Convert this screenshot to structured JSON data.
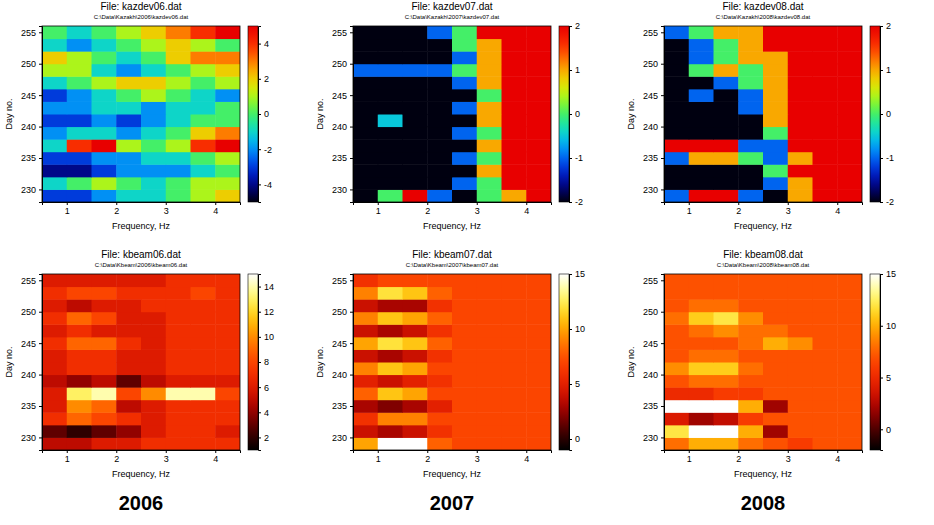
{
  "column_labels": [
    "2006",
    "2007",
    "2008"
  ],
  "chart_data": [
    {
      "type": "heatmap",
      "title": "File: kazdev06.dat",
      "subtitle": "C:\\Data\\Kazakh\\2006\\kazdev06.dat",
      "x_label": "Frequency, Hz",
      "y_label": "Day no.",
      "color": "jet",
      "xlim": [
        0.5,
        4.5
      ],
      "ylim": [
        228,
        256
      ],
      "xticks": [
        1,
        2,
        3,
        4
      ],
      "yticks": [
        230,
        235,
        240,
        245,
        250,
        255
      ],
      "x_bins": [
        0.5,
        1,
        1.5,
        2,
        2.5,
        3,
        3.5,
        4,
        4.5
      ],
      "y_bins": [
        228,
        230,
        232,
        234,
        236,
        238,
        240,
        242,
        244,
        246,
        248,
        250,
        252,
        254,
        256
      ],
      "values": [
        [
          -3,
          -3,
          -2,
          -1,
          -1,
          0,
          1,
          2
        ],
        [
          -1,
          0,
          1,
          0,
          -1,
          0,
          1,
          1
        ],
        [
          -4,
          -4,
          -3,
          -2,
          -2,
          -2,
          -1,
          0
        ],
        [
          -3,
          -3,
          -2,
          -2,
          -1,
          -1,
          0,
          1
        ],
        [
          -1,
          4,
          5,
          1,
          0,
          1,
          4,
          5
        ],
        [
          -2,
          -1,
          -1,
          -2,
          -1,
          0,
          2,
          3
        ],
        [
          -3,
          -3,
          -2,
          -3,
          -2,
          -1,
          0,
          0
        ],
        [
          -2,
          -2,
          -1,
          -1,
          -2,
          -1,
          -1,
          0
        ],
        [
          -3,
          -2,
          -1,
          0,
          1,
          0,
          -1,
          -2
        ],
        [
          -1,
          0,
          1,
          2,
          2,
          1,
          0,
          1
        ],
        [
          1,
          1,
          -1,
          -2,
          -1,
          0,
          1,
          2
        ],
        [
          2,
          1,
          0,
          -1,
          0,
          2,
          3,
          3
        ],
        [
          -1,
          -2,
          -1,
          0,
          1,
          2,
          1,
          0
        ],
        [
          0,
          -1,
          0,
          1,
          2,
          3,
          4,
          5
        ]
      ],
      "colorbar_range": [
        -5,
        5
      ],
      "colorbar_ticks": [
        -4,
        -2,
        0,
        2,
        4
      ]
    },
    {
      "type": "heatmap",
      "title": "File: kazdev07.dat",
      "subtitle": "C:\\Data\\Kazakh\\2007\\kazdev07.dat",
      "x_label": "Frequency, Hz",
      "y_label": "Day no.",
      "color": "jet",
      "xlim": [
        0.5,
        4.5
      ],
      "ylim": [
        228,
        256
      ],
      "xticks": [
        1,
        2,
        3,
        4
      ],
      "yticks": [
        230,
        235,
        240,
        245,
        250,
        255
      ],
      "x_bins": [
        0.5,
        1,
        1.5,
        2,
        2.5,
        3,
        3.5,
        4,
        4.5
      ],
      "y_bins": [
        228,
        230,
        232,
        234,
        236,
        238,
        240,
        242,
        244,
        246,
        248,
        250,
        252,
        254,
        256
      ],
      "values": [
        [
          -2,
          0,
          2,
          -1,
          -2,
          0,
          1,
          2
        ],
        [
          -2,
          -2,
          -2,
          -2,
          -1,
          0,
          2,
          2
        ],
        [
          -2,
          -2,
          -2,
          -2,
          -2,
          1,
          2,
          2
        ],
        [
          -2,
          -2,
          -2,
          -2,
          -1,
          0,
          2,
          2
        ],
        [
          -2,
          -2,
          -2,
          -2,
          -2,
          1,
          2,
          2
        ],
        [
          -2,
          -2,
          -2,
          -2,
          -1,
          0,
          2,
          2
        ],
        [
          -2,
          -0.5,
          -2,
          -2,
          -2,
          1,
          2,
          2
        ],
        [
          -2,
          -2,
          -2,
          -2,
          -1,
          1,
          2,
          2
        ],
        [
          -2,
          -2,
          -2,
          -2,
          -2,
          0,
          2,
          2
        ],
        [
          -2,
          -2,
          -2,
          -2,
          -1,
          1,
          2,
          2
        ],
        [
          -1,
          -1,
          -1,
          -1,
          0,
          1,
          2,
          2
        ],
        [
          -2,
          -2,
          -2,
          -2,
          -1,
          1,
          2,
          2
        ],
        [
          -2,
          -2,
          -2,
          -2,
          0,
          1,
          2,
          2
        ],
        [
          -2,
          -2,
          -2,
          -1,
          0,
          2,
          2,
          2
        ]
      ],
      "colorbar_range": [
        -2,
        2
      ],
      "colorbar_ticks": [
        -2,
        -1,
        0,
        1,
        2
      ]
    },
    {
      "type": "heatmap",
      "title": "File: kazdev08.dat",
      "subtitle": "C:\\Data\\Kazakh\\2008\\kazdev08.dat",
      "x_label": "Frequency, Hz",
      "y_label": "Day no.",
      "color": "jet",
      "xlim": [
        0.5,
        4.5
      ],
      "ylim": [
        228,
        256
      ],
      "xticks": [
        1,
        2,
        3,
        4
      ],
      "yticks": [
        230,
        235,
        240,
        245,
        250,
        255
      ],
      "x_bins": [
        0.5,
        1,
        1.5,
        2,
        2.5,
        3,
        3.5,
        4,
        4.5
      ],
      "y_bins": [
        228,
        230,
        232,
        234,
        236,
        238,
        240,
        242,
        244,
        246,
        248,
        250,
        252,
        254,
        256
      ],
      "values": [
        [
          -1,
          2,
          2,
          -1,
          -2,
          1,
          2,
          2
        ],
        [
          -2,
          -2,
          -2,
          -2,
          -1,
          1,
          2,
          2
        ],
        [
          -2,
          -2,
          -2,
          -2,
          0,
          2,
          2,
          2
        ],
        [
          -1,
          1,
          1,
          0,
          -1,
          1,
          2,
          2
        ],
        [
          2,
          2,
          2,
          -1,
          -1,
          2,
          2,
          2
        ],
        [
          -2,
          -2,
          -2,
          -2,
          0,
          2,
          2,
          2
        ],
        [
          -2,
          -2,
          -2,
          -2,
          1,
          2,
          2,
          2
        ],
        [
          -2,
          -2,
          -2,
          -1,
          1,
          2,
          2,
          2
        ],
        [
          -2,
          -1,
          -2,
          -1,
          1,
          2,
          2,
          2
        ],
        [
          -2,
          -2,
          -1,
          0,
          1,
          2,
          2,
          2
        ],
        [
          -2,
          0,
          1,
          0,
          1,
          2,
          2,
          2
        ],
        [
          -2,
          -1,
          0,
          1,
          1,
          2,
          2,
          2
        ],
        [
          -2,
          -1,
          0,
          1,
          2,
          2,
          2,
          2
        ],
        [
          -1,
          0,
          1,
          1,
          2,
          2,
          2,
          2
        ]
      ],
      "colorbar_range": [
        -2,
        2
      ],
      "colorbar_ticks": [
        -2,
        -1,
        0,
        1,
        2
      ]
    },
    {
      "type": "heatmap",
      "title": "File: kbeam06.dat",
      "subtitle": "C:\\Data\\Kbeam\\2006\\kbeam06.dat",
      "x_label": "Frequency, Hz",
      "y_label": "Day no.",
      "color": "hot",
      "xlim": [
        0.5,
        4.5
      ],
      "ylim": [
        228,
        256
      ],
      "xticks": [
        1,
        2,
        3,
        4
      ],
      "yticks": [
        230,
        235,
        240,
        245,
        250,
        255
      ],
      "x_bins": [
        0.5,
        1,
        1.5,
        2,
        2.5,
        3,
        3.5,
        4,
        4.5
      ],
      "y_bins": [
        228,
        230,
        232,
        234,
        236,
        238,
        240,
        242,
        244,
        246,
        248,
        250,
        252,
        254,
        256
      ],
      "values": [
        [
          5,
          5,
          6,
          6,
          7,
          7,
          7,
          7
        ],
        [
          3,
          2,
          3,
          4,
          6,
          7,
          7,
          6
        ],
        [
          7,
          9,
          8,
          7,
          6,
          7,
          7,
          7
        ],
        [
          6,
          10,
          9,
          5,
          6,
          7,
          7,
          7
        ],
        [
          6,
          13,
          14,
          8,
          10,
          14,
          14,
          8
        ],
        [
          5,
          4,
          5,
          3,
          5,
          6,
          6,
          6
        ],
        [
          6,
          7,
          7,
          6,
          6,
          7,
          7,
          7
        ],
        [
          6,
          7,
          7,
          6,
          6,
          7,
          7,
          7
        ],
        [
          7,
          9,
          9,
          7,
          6,
          7,
          7,
          7
        ],
        [
          6,
          7,
          6,
          6,
          6,
          7,
          7,
          7
        ],
        [
          7,
          9,
          8,
          6,
          6,
          7,
          7,
          7
        ],
        [
          6,
          5,
          6,
          6,
          7,
          7,
          7,
          7
        ],
        [
          7,
          8,
          8,
          7,
          7,
          7,
          8,
          7
        ],
        [
          6,
          6,
          6,
          6,
          6,
          7,
          7,
          7
        ]
      ],
      "colorbar_range": [
        1,
        15
      ],
      "colorbar_ticks": [
        2,
        4,
        6,
        8,
        10,
        12,
        14
      ]
    },
    {
      "type": "heatmap",
      "title": "File: kbeam07.dat",
      "subtitle": "C:\\Data\\Kbeam\\2007\\kbeam07.dat",
      "x_label": "Frequency, Hz",
      "y_label": "Day no.",
      "color": "hot",
      "xlim": [
        0.5,
        4.5
      ],
      "ylim": [
        228,
        256
      ],
      "xticks": [
        1,
        2,
        3,
        4
      ],
      "yticks": [
        230,
        235,
        240,
        245,
        250,
        255
      ],
      "x_bins": [
        0.5,
        1,
        1.5,
        2,
        2.5,
        3,
        3.5,
        4,
        4.5
      ],
      "y_bins": [
        228,
        230,
        232,
        234,
        236,
        238,
        240,
        242,
        244,
        246,
        248,
        250,
        252,
        254,
        256
      ],
      "values": [
        [
          10,
          15,
          15,
          8,
          7,
          7,
          7,
          7
        ],
        [
          4,
          3,
          4,
          6,
          7,
          7,
          7,
          7
        ],
        [
          6,
          9,
          9,
          7,
          7,
          7,
          7,
          7
        ],
        [
          3,
          2,
          3,
          5,
          7,
          7,
          7,
          7
        ],
        [
          8,
          11,
          10,
          7,
          7,
          7,
          7,
          7
        ],
        [
          5,
          4,
          5,
          6,
          7,
          7,
          7,
          7
        ],
        [
          9,
          11,
          10,
          7,
          7,
          7,
          7,
          7
        ],
        [
          4,
          3,
          4,
          6,
          7,
          7,
          7,
          7
        ],
        [
          10,
          12,
          11,
          8,
          7,
          7,
          7,
          7
        ],
        [
          4,
          3,
          4,
          6,
          7,
          7,
          7,
          7
        ],
        [
          9,
          11,
          10,
          8,
          7,
          7,
          7,
          7
        ],
        [
          4,
          3,
          3,
          6,
          7,
          7,
          7,
          7
        ],
        [
          9,
          12,
          11,
          8,
          7,
          7,
          7,
          7
        ],
        [
          6,
          7,
          7,
          7,
          7,
          7,
          7,
          7
        ]
      ],
      "colorbar_range": [
        -1,
        15
      ],
      "colorbar_ticks": [
        0,
        5,
        10,
        15
      ]
    },
    {
      "type": "heatmap",
      "title": "File: kbeam08.dat",
      "subtitle": "C:\\Data\\Kbeam\\2008\\kbeam08.dat",
      "x_label": "Frequency, Hz",
      "y_label": "Day no.",
      "color": "hot",
      "xlim": [
        0.5,
        4.5
      ],
      "ylim": [
        228,
        256
      ],
      "xticks": [
        1,
        2,
        3,
        4
      ],
      "yticks": [
        230,
        235,
        240,
        245,
        250,
        255
      ],
      "x_bins": [
        0.5,
        1,
        1.5,
        2,
        2.5,
        3,
        3.5,
        4,
        4.5
      ],
      "y_bins": [
        228,
        230,
        232,
        234,
        236,
        238,
        240,
        242,
        244,
        246,
        248,
        250,
        252,
        254,
        256
      ],
      "values": [
        [
          8,
          10,
          10,
          8,
          7,
          6,
          7,
          7
        ],
        [
          12,
          15,
          15,
          10,
          2,
          7,
          7,
          7
        ],
        [
          4,
          2,
          3,
          6,
          7,
          7,
          7,
          7
        ],
        [
          15,
          15,
          15,
          10,
          2,
          7,
          7,
          7
        ],
        [
          5,
          5,
          6,
          6,
          7,
          7,
          7,
          7
        ],
        [
          7,
          8,
          8,
          7,
          7,
          7,
          7,
          7
        ],
        [
          9,
          11,
          11,
          8,
          7,
          7,
          7,
          7
        ],
        [
          7,
          8,
          8,
          7,
          7,
          7,
          7,
          7
        ],
        [
          7,
          7,
          7,
          8,
          10,
          9,
          7,
          7
        ],
        [
          7,
          8,
          9,
          8,
          8,
          7,
          7,
          7
        ],
        [
          8,
          11,
          12,
          9,
          7,
          7,
          7,
          7
        ],
        [
          7,
          8,
          8,
          7,
          7,
          7,
          7,
          7
        ],
        [
          7,
          7,
          7,
          7,
          7,
          7,
          7,
          7
        ],
        [
          7,
          7,
          7,
          7,
          7,
          7,
          7,
          7
        ]
      ],
      "colorbar_range": [
        -2,
        15
      ],
      "colorbar_ticks": [
        0,
        5,
        10,
        15
      ]
    }
  ]
}
